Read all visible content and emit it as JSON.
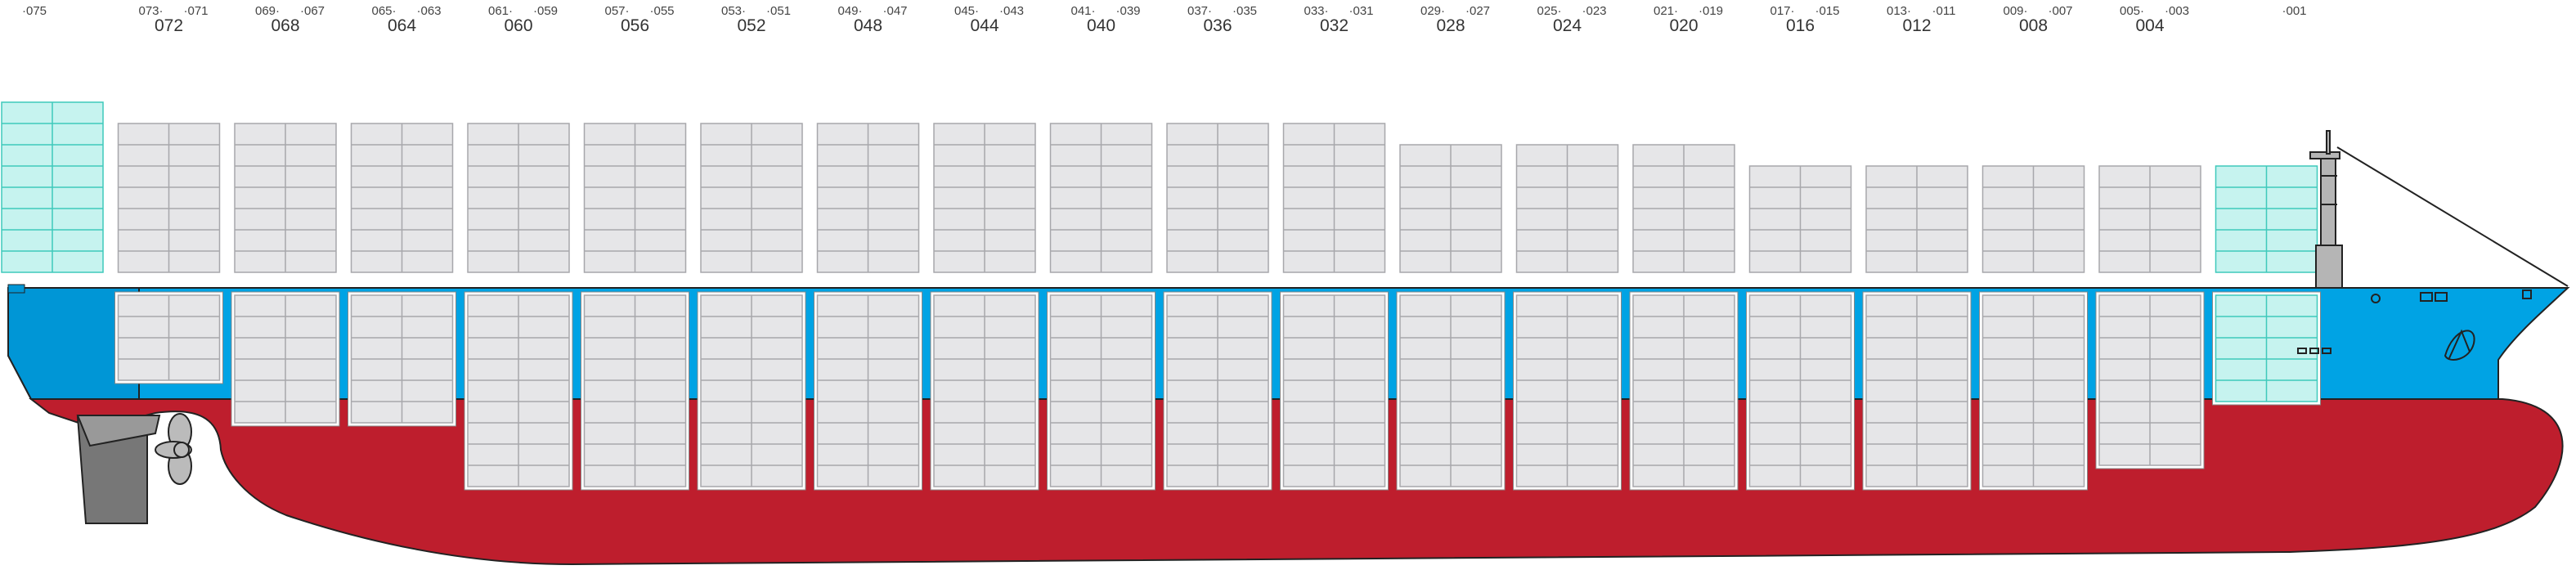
{
  "colors": {
    "hull_red": "#be1e2d",
    "hull_blue": "#00a3e4",
    "hull_blue_dark": "#0096d6",
    "container_fill": "#e6e6e8",
    "container_line": "#a7a7ab",
    "reefer_fill": "#c6f3ef",
    "reefer_line": "#3fc9bb",
    "hatch_bg": "#ffffff",
    "machinery_gray": "#777777",
    "outline": "#222222"
  },
  "bays": [
    {
      "odd_a": "·075",
      "odd_b": "",
      "even": ""
    },
    {
      "odd_a": "073·",
      "odd_b": "·071",
      "even": "072"
    },
    {
      "odd_a": "069·",
      "odd_b": "·067",
      "even": "068"
    },
    {
      "odd_a": "065·",
      "odd_b": "·063",
      "even": "064"
    },
    {
      "odd_a": "061·",
      "odd_b": "·059",
      "even": "060"
    },
    {
      "odd_a": "057·",
      "odd_b": "·055",
      "even": "056"
    },
    {
      "odd_a": "053·",
      "odd_b": "·051",
      "even": "052"
    },
    {
      "odd_a": "049·",
      "odd_b": "·047",
      "even": "048"
    },
    {
      "odd_a": "045·",
      "odd_b": "·043",
      "even": "044"
    },
    {
      "odd_a": "041·",
      "odd_b": "·039",
      "even": "040"
    },
    {
      "odd_a": "037·",
      "odd_b": "·035",
      "even": "036"
    },
    {
      "odd_a": "033·",
      "odd_b": "·031",
      "even": "032"
    },
    {
      "odd_a": "029·",
      "odd_b": "·027",
      "even": "028"
    },
    {
      "odd_a": "025·",
      "odd_b": "·023",
      "even": "024"
    },
    {
      "odd_a": "021·",
      "odd_b": "·019",
      "even": "020"
    },
    {
      "odd_a": "017·",
      "odd_b": "·015",
      "even": "016"
    },
    {
      "odd_a": "013·",
      "odd_b": "·011",
      "even": "012"
    },
    {
      "odd_a": "009·",
      "odd_b": "·007",
      "even": "008"
    },
    {
      "odd_a": "005·",
      "odd_b": "·003",
      "even": "004"
    },
    {
      "odd_a": "",
      "odd_b": "·001",
      "even": ""
    }
  ],
  "stacks": [
    {
      "deck_tiers": 8,
      "hold_tiers": 0,
      "reefer_deck": true
    },
    {
      "deck_tiers": 7,
      "hold_tiers": 4,
      "reefer_deck": false
    },
    {
      "deck_tiers": 7,
      "hold_tiers": 6,
      "reefer_deck": false
    },
    {
      "deck_tiers": 7,
      "hold_tiers": 6,
      "reefer_deck": false
    },
    {
      "deck_tiers": 7,
      "hold_tiers": 9,
      "reefer_deck": false
    },
    {
      "deck_tiers": 7,
      "hold_tiers": 9,
      "reefer_deck": false
    },
    {
      "deck_tiers": 7,
      "hold_tiers": 9,
      "reefer_deck": false
    },
    {
      "deck_tiers": 7,
      "hold_tiers": 9,
      "reefer_deck": false
    },
    {
      "deck_tiers": 7,
      "hold_tiers": 9,
      "reefer_deck": false
    },
    {
      "deck_tiers": 7,
      "hold_tiers": 9,
      "reefer_deck": false
    },
    {
      "deck_tiers": 7,
      "hold_tiers": 9,
      "reefer_deck": false
    },
    {
      "deck_tiers": 7,
      "hold_tiers": 9,
      "reefer_deck": false
    },
    {
      "deck_tiers": 6,
      "hold_tiers": 9,
      "reefer_deck": false
    },
    {
      "deck_tiers": 6,
      "hold_tiers": 9,
      "reefer_deck": false
    },
    {
      "deck_tiers": 6,
      "hold_tiers": 9,
      "reefer_deck": false
    },
    {
      "deck_tiers": 5,
      "hold_tiers": 9,
      "reefer_deck": false
    },
    {
      "deck_tiers": 5,
      "hold_tiers": 9,
      "reefer_deck": false
    },
    {
      "deck_tiers": 5,
      "hold_tiers": 9,
      "reefer_deck": false
    },
    {
      "deck_tiers": 5,
      "hold_tiers": 8,
      "reefer_deck": false
    },
    {
      "deck_tiers": 5,
      "hold_tiers": 5,
      "reefer_deck": true
    }
  ]
}
